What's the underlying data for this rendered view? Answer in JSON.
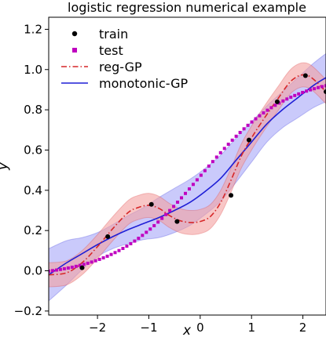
{
  "chart_data": {
    "type": "line",
    "title": "logistic regression numerical example",
    "xlabel": "x",
    "ylabel": "y",
    "xlim": [
      -2.95,
      2.45
    ],
    "ylim": [
      -0.22,
      1.26
    ],
    "xticks": [
      -2,
      -1,
      0,
      1,
      2
    ],
    "xtick_labels": [
      "−2",
      "−1",
      "0",
      "1",
      "2"
    ],
    "yticks": [
      -0.2,
      0.0,
      0.2,
      0.4,
      0.6,
      0.8,
      1.0,
      1.2
    ],
    "ytick_labels": [
      "−0.2",
      "0.0",
      "0.2",
      "0.4",
      "0.6",
      "0.8",
      "1.0",
      "1.2"
    ],
    "legend_position": "top-left",
    "grid": false,
    "colors": {
      "train": "#000000",
      "test": "#bf00bf",
      "reg_gp": "#d62728",
      "reg_gp_band": "#f4a0a0",
      "monotonic_gp": "#1f1fd6",
      "monotonic_gp_band": "#9f9ff7"
    },
    "series": [
      {
        "name": "train",
        "style": "marker-dot",
        "x": [
          -2.3,
          -1.8,
          -0.95,
          -0.45,
          0.6,
          0.95,
          1.5,
          2.05,
          2.45
        ],
        "y": [
          0.015,
          0.17,
          0.33,
          0.245,
          0.375,
          0.65,
          0.84,
          0.97,
          0.89
        ]
      },
      {
        "name": "test",
        "style": "marker-square",
        "function": "logistic",
        "x_start": -2.95,
        "x_end": 2.45,
        "count": 72
      },
      {
        "name": "reg-GP",
        "style": "dash-dot",
        "x": [
          -2.95,
          -2.6,
          -2.3,
          -2.0,
          -1.7,
          -1.4,
          -1.2,
          -1.0,
          -0.8,
          -0.6,
          -0.4,
          -0.2,
          0.0,
          0.2,
          0.4,
          0.6,
          0.8,
          1.0,
          1.2,
          1.5,
          1.8,
          2.1,
          2.45
        ],
        "y": [
          -0.02,
          -0.01,
          0.04,
          0.12,
          0.21,
          0.29,
          0.315,
          0.325,
          0.31,
          0.275,
          0.25,
          0.24,
          0.245,
          0.27,
          0.34,
          0.45,
          0.57,
          0.66,
          0.74,
          0.85,
          0.95,
          0.97,
          0.89
        ],
        "band_halfwidth": [
          0.06,
          0.06,
          0.06,
          0.06,
          0.06,
          0.06,
          0.06,
          0.06,
          0.06,
          0.06,
          0.06,
          0.06,
          0.06,
          0.06,
          0.06,
          0.06,
          0.06,
          0.06,
          0.06,
          0.06,
          0.06,
          0.06,
          0.06
        ]
      },
      {
        "name": "monotonic-GP",
        "style": "solid",
        "x": [
          -2.95,
          -2.6,
          -2.3,
          -2.0,
          -1.7,
          -1.4,
          -1.1,
          -0.8,
          -0.5,
          -0.2,
          0.1,
          0.4,
          0.7,
          1.0,
          1.3,
          1.6,
          1.9,
          2.2,
          2.45
        ],
        "y": [
          -0.02,
          0.04,
          0.085,
          0.13,
          0.17,
          0.205,
          0.235,
          0.265,
          0.3,
          0.34,
          0.395,
          0.46,
          0.55,
          0.64,
          0.73,
          0.8,
          0.86,
          0.92,
          0.96
        ],
        "band_halfwidth": [
          0.13,
          0.11,
          0.08,
          0.06,
          0.06,
          0.07,
          0.08,
          0.1,
          0.11,
          0.115,
          0.115,
          0.115,
          0.11,
          0.1,
          0.09,
          0.09,
          0.1,
          0.11,
          0.12
        ]
      }
    ]
  }
}
